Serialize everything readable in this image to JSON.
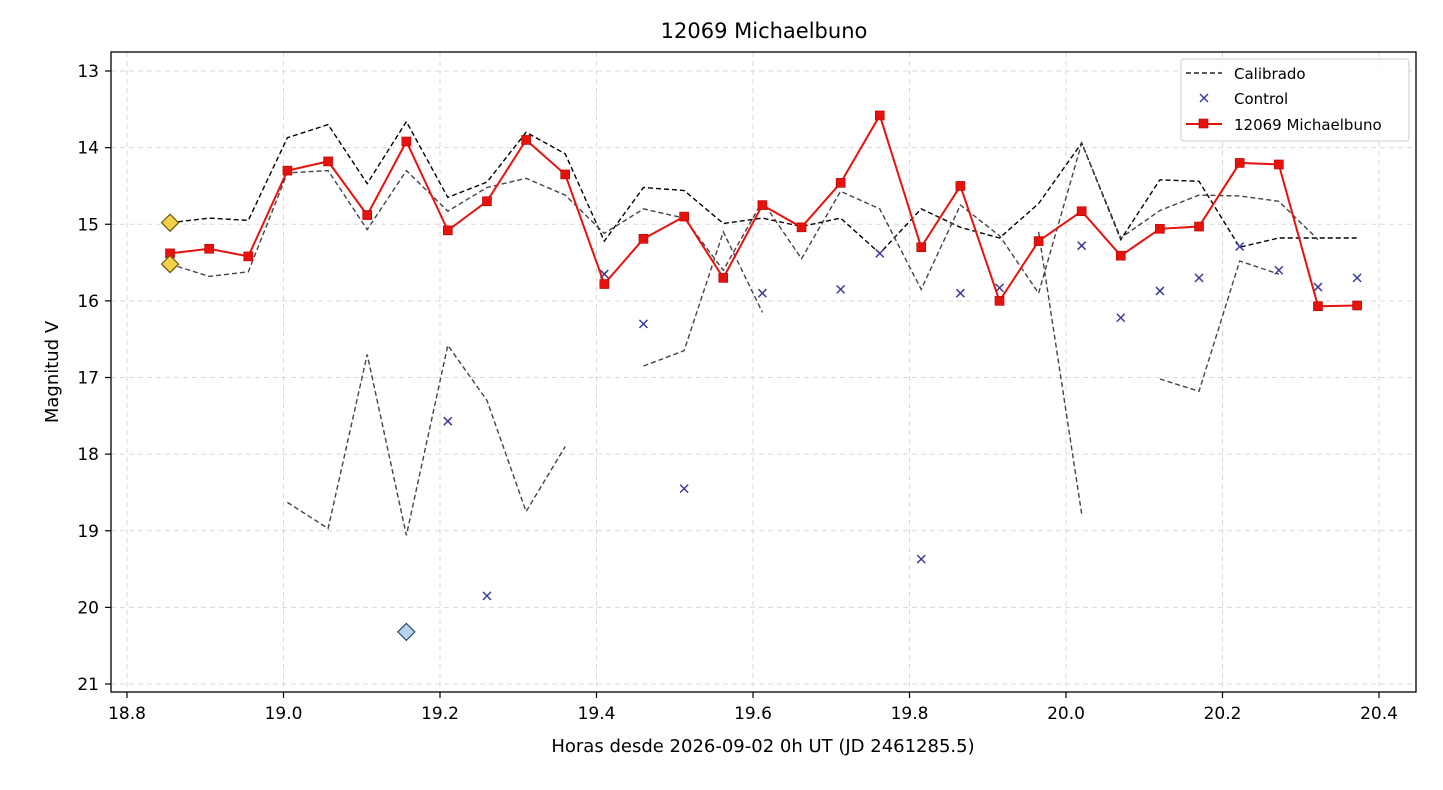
{
  "chart_data": {
    "type": "line",
    "title": "12069 Michaelbuno",
    "xlabel": "Horas desde 2026-09-02 0h UT (JD 2461285.5)",
    "ylabel": "Magnitud V",
    "xlim": [
      18.78,
      20.45
    ],
    "ylim": [
      21.1,
      12.75
    ],
    "y_inverted": true,
    "xticks": [
      18.8,
      19.0,
      19.2,
      19.4,
      19.6,
      19.8,
      20.0,
      20.2,
      20.4
    ],
    "xtick_labels": [
      "18.8",
      "19.0",
      "19.2",
      "19.4",
      "19.6",
      "19.8",
      "20.0",
      "20.2",
      "20.4"
    ],
    "yticks": [
      13,
      14,
      15,
      16,
      17,
      18,
      19,
      20,
      21
    ],
    "ytick_labels": [
      "13",
      "14",
      "15",
      "16",
      "17",
      "18",
      "19",
      "20",
      "21"
    ],
    "grid": true,
    "legend_position": "top-right",
    "legend": [
      "Calibrado",
      "Control",
      "12069 Michaelbuno"
    ],
    "colors": {
      "calibrado": "#000000",
      "calibrado_alt": "#444444",
      "control": "#3b3b9a",
      "target": "#e8120c",
      "diamond_yellow": "#f5d04a",
      "diamond_blue": "#b8d4ef"
    },
    "series": [
      {
        "name": "Calibrado",
        "style": "dashed-black",
        "points": [
          [
            18.855,
            14.98
          ],
          [
            18.905,
            14.92
          ],
          [
            18.955,
            14.95
          ],
          [
            19.005,
            13.87
          ],
          [
            19.057,
            13.7
          ],
          [
            19.107,
            14.47
          ],
          [
            19.157,
            13.66
          ],
          [
            19.21,
            14.65
          ],
          [
            19.26,
            14.45
          ],
          [
            19.31,
            13.8
          ],
          [
            19.36,
            14.08
          ],
          [
            19.41,
            15.22
          ],
          [
            19.46,
            14.52
          ],
          [
            19.512,
            14.56
          ],
          [
            19.562,
            14.99
          ],
          [
            19.612,
            14.92
          ],
          [
            19.662,
            15.03
          ],
          [
            19.712,
            14.92
          ],
          [
            19.762,
            15.38
          ],
          [
            19.815,
            14.8
          ],
          [
            19.865,
            15.04
          ],
          [
            19.915,
            15.18
          ],
          [
            19.965,
            14.73
          ],
          [
            20.02,
            13.94
          ],
          [
            20.07,
            15.2
          ],
          [
            20.12,
            14.42
          ],
          [
            20.17,
            14.44
          ],
          [
            20.222,
            15.3
          ],
          [
            20.272,
            15.18
          ],
          [
            20.322,
            15.18
          ],
          [
            20.372,
            15.18
          ]
        ]
      },
      {
        "name": "",
        "style": "dashed-gray",
        "points": [
          [
            18.855,
            15.52
          ],
          [
            18.905,
            15.68
          ],
          [
            18.955,
            15.62
          ],
          [
            19.005,
            14.33
          ],
          [
            19.057,
            14.3
          ],
          [
            19.107,
            15.07
          ],
          [
            19.157,
            14.3
          ],
          [
            19.21,
            14.83
          ],
          [
            19.26,
            14.52
          ],
          [
            19.31,
            14.4
          ],
          [
            19.36,
            14.62
          ],
          [
            19.41,
            15.12
          ],
          [
            19.46,
            14.8
          ],
          [
            19.512,
            14.92
          ],
          [
            19.562,
            15.6
          ],
          [
            19.612,
            14.7
          ],
          [
            19.662,
            15.45
          ],
          [
            19.712,
            14.57
          ],
          [
            19.762,
            14.8
          ],
          [
            19.815,
            15.85
          ],
          [
            19.865,
            14.75
          ],
          [
            19.915,
            15.15
          ],
          [
            19.965,
            15.9
          ],
          [
            20.02,
            13.94
          ],
          [
            20.07,
            15.18
          ],
          [
            20.12,
            14.82
          ],
          [
            20.17,
            14.62
          ],
          [
            20.222,
            14.63
          ],
          [
            20.272,
            14.7
          ],
          [
            20.322,
            15.2
          ]
        ]
      },
      {
        "name": "",
        "style": "dashed-gray",
        "points": [
          [
            19.005,
            18.63
          ],
          [
            19.057,
            18.97
          ],
          [
            19.107,
            16.7
          ],
          [
            19.157,
            19.06
          ],
          [
            19.21,
            16.58
          ],
          [
            19.26,
            17.3
          ],
          [
            19.31,
            18.75
          ],
          [
            19.36,
            17.9
          ]
        ]
      },
      {
        "name": "",
        "style": "dashed-gray",
        "points": [
          [
            19.46,
            16.85
          ],
          [
            19.512,
            16.65
          ],
          [
            19.562,
            15.1
          ],
          [
            19.612,
            16.15
          ]
        ]
      },
      {
        "name": "",
        "style": "dashed-gray",
        "points": [
          [
            19.965,
            15.1
          ],
          [
            20.02,
            18.78
          ]
        ]
      },
      {
        "name": "",
        "style": "dashed-gray",
        "points": [
          [
            20.12,
            17.02
          ],
          [
            20.17,
            17.18
          ],
          [
            20.222,
            15.48
          ],
          [
            20.272,
            15.65
          ]
        ]
      },
      {
        "name": "Control",
        "style": "x-markers",
        "points": [
          [
            19.21,
            17.57
          ],
          [
            19.26,
            19.85
          ],
          [
            19.41,
            15.65
          ],
          [
            19.46,
            16.3
          ],
          [
            19.512,
            18.45
          ],
          [
            19.612,
            15.9
          ],
          [
            19.712,
            15.85
          ],
          [
            19.762,
            15.38
          ],
          [
            19.815,
            19.37
          ],
          [
            19.865,
            15.9
          ],
          [
            19.915,
            15.83
          ],
          [
            20.02,
            15.28
          ],
          [
            20.07,
            16.22
          ],
          [
            20.12,
            15.87
          ],
          [
            20.17,
            15.7
          ],
          [
            20.222,
            15.29
          ],
          [
            20.272,
            15.6
          ],
          [
            20.322,
            15.82
          ],
          [
            20.372,
            15.7
          ]
        ]
      },
      {
        "name": "12069 Michaelbuno",
        "style": "red-line-squares",
        "points": [
          [
            18.855,
            15.38
          ],
          [
            18.905,
            15.32
          ],
          [
            18.955,
            15.42
          ],
          [
            19.005,
            14.3
          ],
          [
            19.057,
            14.18
          ],
          [
            19.107,
            14.88
          ],
          [
            19.157,
            13.92
          ],
          [
            19.21,
            15.08
          ],
          [
            19.26,
            14.7
          ],
          [
            19.31,
            13.9
          ],
          [
            19.36,
            14.35
          ],
          [
            19.41,
            15.78
          ],
          [
            19.46,
            15.19
          ],
          [
            19.512,
            14.9
          ],
          [
            19.562,
            15.7
          ],
          [
            19.612,
            14.75
          ],
          [
            19.662,
            15.04
          ],
          [
            19.712,
            14.46
          ],
          [
            19.762,
            13.58
          ],
          [
            19.815,
            15.3
          ],
          [
            19.865,
            14.5
          ],
          [
            19.915,
            16.0
          ],
          [
            19.965,
            15.22
          ],
          [
            20.02,
            14.83
          ],
          [
            20.07,
            15.41
          ],
          [
            20.12,
            15.06
          ],
          [
            20.17,
            15.03
          ],
          [
            20.222,
            14.2
          ],
          [
            20.272,
            14.22
          ],
          [
            20.322,
            16.07
          ],
          [
            20.372,
            16.06
          ]
        ]
      },
      {
        "name": "",
        "style": "diamonds",
        "points": [
          [
            18.855,
            14.98,
            "yellow"
          ],
          [
            18.855,
            15.52,
            "yellow"
          ],
          [
            19.157,
            20.32,
            "blue"
          ]
        ]
      }
    ]
  }
}
